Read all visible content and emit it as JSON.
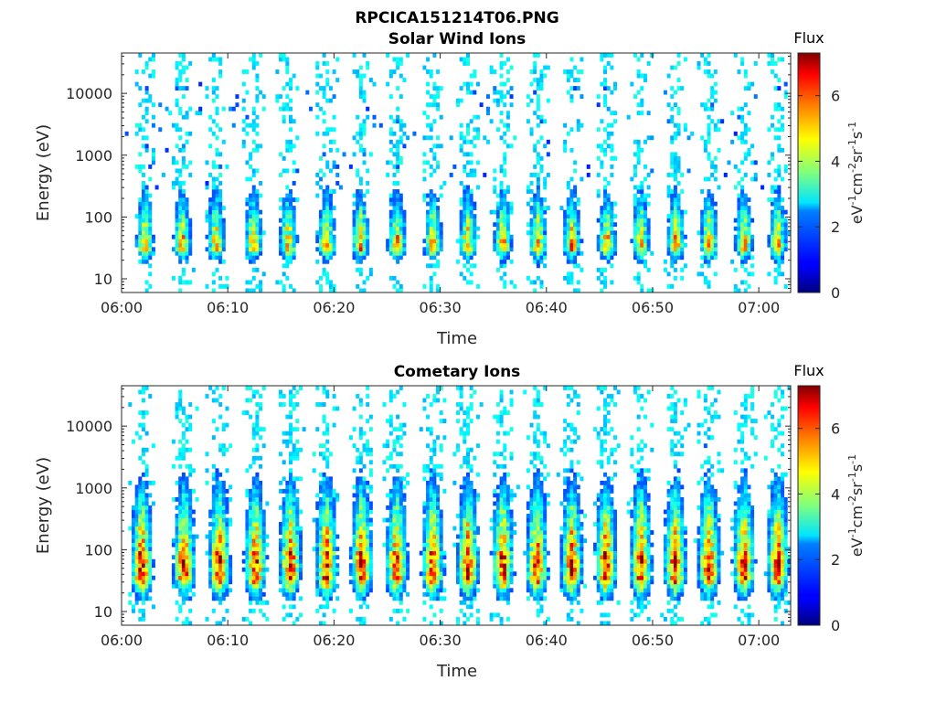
{
  "figure_title": "RPCICA151214T06.PNG",
  "chart_data": [
    {
      "type": "heatmap",
      "title": "Solar Wind Ions",
      "xlabel": "Time",
      "ylabel": "Energy (eV)",
      "x_ticks": [
        "06:00",
        "06:10",
        "06:20",
        "06:30",
        "06:40",
        "06:50",
        "07:00"
      ],
      "xlim": [
        "06:00",
        "07:03"
      ],
      "y_scale": "log",
      "ylim": [
        6,
        45000
      ],
      "y_ticks": [
        10,
        100,
        1000,
        10000
      ],
      "y_tick_labels": [
        "10",
        "100",
        "1000",
        "10000"
      ],
      "colorbar": {
        "label": "Flux",
        "unit": "eV-1 cm-2 sr-1 s-1",
        "range": [
          0,
          7.3
        ],
        "ticks": [
          "0",
          "2",
          "4",
          "6"
        ]
      },
      "colormap": "jet",
      "bursts_minutes": [
        2.2,
        5.7,
        8.9,
        12.4,
        15.7,
        19.3,
        22.5,
        25.9,
        29.3,
        32.6,
        35.9,
        39.2,
        42.4,
        45.7,
        48.9,
        52.2,
        55.3,
        58.6,
        61.8
      ],
      "peak_energy_eV": [
        25,
        60
      ],
      "peak_flux": 5.5,
      "background_energy_eV": [
        300,
        15000
      ]
    },
    {
      "type": "heatmap",
      "title": "Cometary Ions",
      "xlabel": "Time",
      "ylabel": "Energy (eV)",
      "x_ticks": [
        "06:00",
        "06:10",
        "06:20",
        "06:30",
        "06:40",
        "06:50",
        "07:00"
      ],
      "xlim": [
        "06:00",
        "07:03"
      ],
      "y_scale": "log",
      "ylim": [
        6,
        45000
      ],
      "y_ticks": [
        10,
        100,
        1000,
        10000
      ],
      "y_tick_labels": [
        "10",
        "100",
        "1000",
        "10000"
      ],
      "colorbar": {
        "label": "Flux",
        "unit": "eV-1 cm-2 sr-1 s-1",
        "range": [
          0,
          7.3
        ],
        "ticks": [
          "0",
          "2",
          "4",
          "6"
        ]
      },
      "colormap": "jet",
      "bursts_minutes": [
        1.9,
        5.9,
        9.2,
        12.6,
        15.9,
        19.3,
        22.6,
        25.9,
        29.3,
        32.6,
        35.9,
        39.1,
        42.4,
        45.6,
        48.9,
        52.1,
        55.3,
        58.6,
        61.8
      ],
      "peak_energy_eV": [
        25,
        120
      ],
      "peak_flux": 6.6,
      "background_energy_eV": [
        1000,
        6000
      ]
    }
  ]
}
